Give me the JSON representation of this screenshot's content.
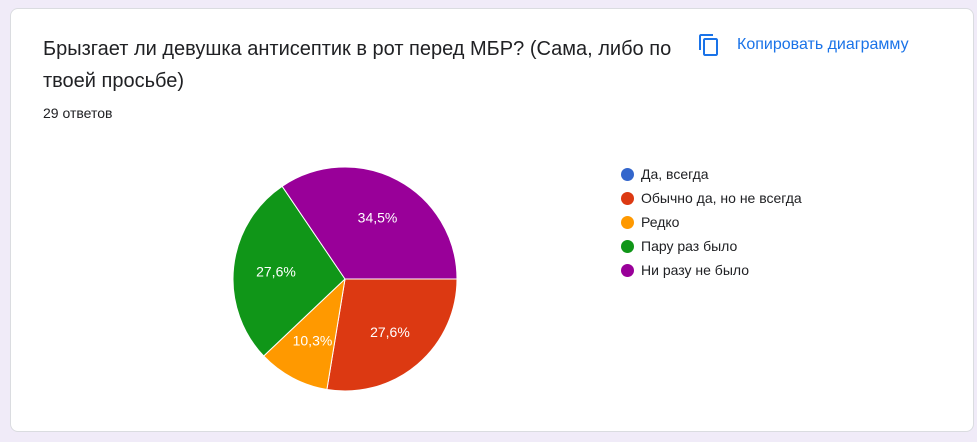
{
  "question": {
    "title": "Брызгает ли девушка антисептик в рот перед МБР? (Сама, либо по твоей просьбе)",
    "responses": "29 ответов"
  },
  "toolbar": {
    "copy_label": "Копировать диаграмму",
    "copy_icon": "copy-icon"
  },
  "chart_data": {
    "type": "pie",
    "categories": [
      "Да, всегда",
      "Обычно да, но не всегда",
      "Редко",
      "Пару раз было",
      "Ни разу не было"
    ],
    "values": [
      0,
      8,
      3,
      8,
      10
    ],
    "percent_labels": [
      "",
      "27,6%",
      "10,3%",
      "27,6%",
      "34,5%"
    ],
    "colors": [
      "#3366cc",
      "#dc3912",
      "#ff9900",
      "#109618",
      "#990099"
    ],
    "start_angle": 0,
    "direction": "clockwise",
    "legend_position": "right"
  }
}
